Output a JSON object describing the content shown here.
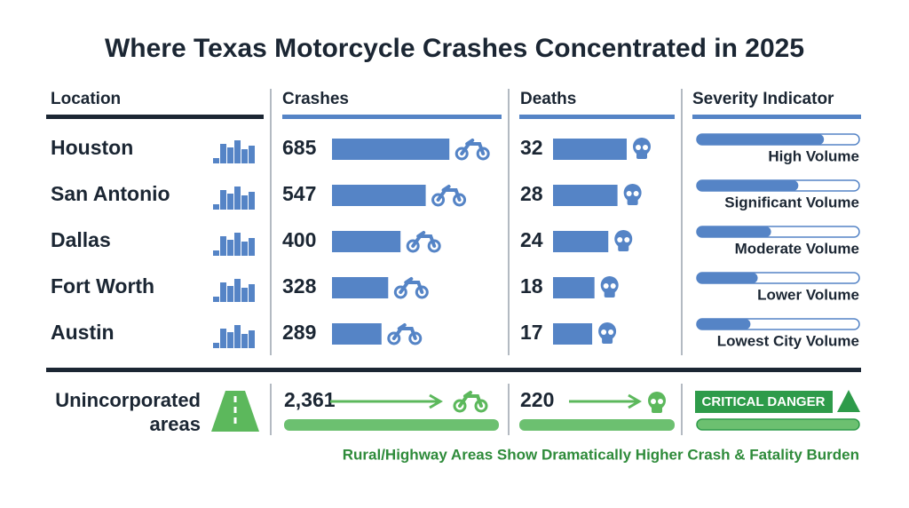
{
  "title": "Where Texas Motorcycle Crashes Concentrated in 2025",
  "columns": [
    "Location",
    "Crashes",
    "Deaths",
    "Severity Indicator"
  ],
  "rows": [
    {
      "location": "Houston",
      "crashes": 685,
      "deaths": 32,
      "severity": "High Volume"
    },
    {
      "location": "San Antonio",
      "crashes": 547,
      "deaths": 28,
      "severity": "Significant Volume"
    },
    {
      "location": "Dallas",
      "crashes": 400,
      "deaths": 24,
      "severity": "Moderate Volume"
    },
    {
      "location": "Fort Worth",
      "crashes": 328,
      "deaths": 18,
      "severity": "Lower Volume"
    },
    {
      "location": "Austin",
      "crashes": 289,
      "deaths": 17,
      "severity": "Lowest City Volume"
    }
  ],
  "total": {
    "location": "Unincorporated areas",
    "crashes": {
      "value": 2361,
      "label": "2,361"
    },
    "deaths": 220,
    "severity": "CRITICAL DANGER"
  },
  "note": "Rural/Highway Areas Show Dramatically Higher Crash & Fatality Burden"
}
